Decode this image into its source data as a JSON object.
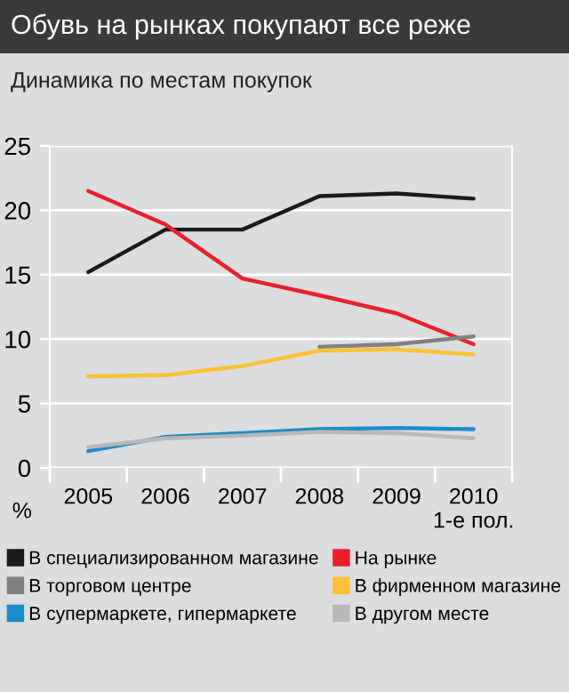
{
  "chart_data": {
    "type": "line",
    "title": "Обувь на рынках покупают все реже",
    "subtitle": "Динамика по местам покупок",
    "ylabel": "%",
    "categories": [
      "2005",
      "2006",
      "2007",
      "2008",
      "2009",
      "2010\n1-е пол."
    ],
    "series": [
      {
        "name": "В специализированном магазине",
        "color": "#1a1a1a",
        "values": [
          15.2,
          18.5,
          18.5,
          21.1,
          21.3,
          20.9
        ]
      },
      {
        "name": "На рынке",
        "color": "#e8202a",
        "values": [
          21.5,
          18.9,
          14.7,
          13.4,
          12.0,
          9.6
        ]
      },
      {
        "name": "В торговом центре",
        "color": "#808080",
        "values": [
          null,
          null,
          null,
          9.4,
          9.6,
          10.2
        ]
      },
      {
        "name": "В фирменном магазине",
        "color": "#fcc236",
        "values": [
          7.1,
          7.2,
          7.9,
          9.1,
          9.2,
          8.8
        ]
      },
      {
        "name": "В супермаркете, гипермаркете",
        "color": "#1a8cc8",
        "values": [
          1.3,
          2.4,
          2.7,
          3.0,
          3.1,
          3.0
        ]
      },
      {
        "name": "В другом месте",
        "color": "#b8b8b8",
        "values": [
          1.6,
          2.3,
          2.5,
          2.8,
          2.7,
          2.3
        ]
      }
    ],
    "ylim": [
      0,
      25
    ],
    "yticks": [
      0,
      5,
      10,
      15,
      20,
      25
    ],
    "grid": "y",
    "legend": "bottom",
    "marker": "none",
    "line_style": "solid"
  }
}
